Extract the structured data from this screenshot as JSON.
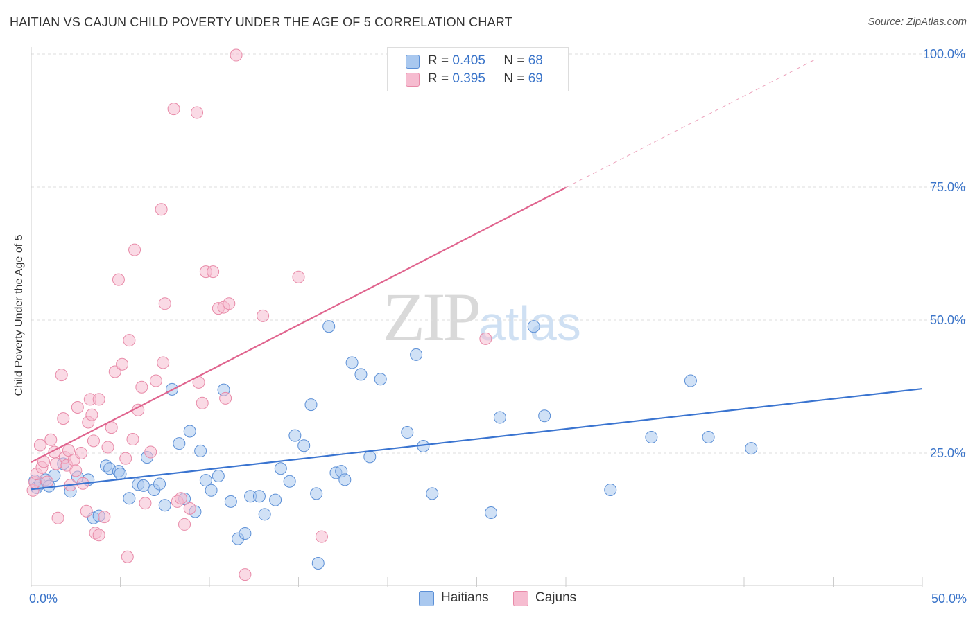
{
  "header": {
    "title": "HAITIAN VS CAJUN CHILD POVERTY UNDER THE AGE OF 5 CORRELATION CHART",
    "source": "Source: ZipAtlas.com"
  },
  "watermark": {
    "zip": "ZIP",
    "atlas": "atlas"
  },
  "legend": {
    "haitians": {
      "r_label": "R =",
      "r_value": "0.405",
      "n_label": "N =",
      "n_value": "68"
    },
    "cajuns": {
      "r_label": "R =",
      "r_value": "0.395",
      "n_label": "N =",
      "n_value": "69"
    }
  },
  "bottom_legend": {
    "haitians": "Haitians",
    "cajuns": "Cajuns"
  },
  "colors": {
    "haitian_fill": "#a9c8ef",
    "haitian_stroke": "#5b8fd6",
    "haitian_line": "#3a74d0",
    "cajun_fill": "#f6bcd0",
    "cajun_stroke": "#e88aa8",
    "cajun_line": "#e0648e",
    "grid": "#dddddd",
    "axis_text": "#3a74c9"
  },
  "chart_data": {
    "type": "scatter",
    "title": "HAITIAN VS CAJUN CHILD POVERTY UNDER THE AGE OF 5 CORRELATION CHART",
    "xlabel": "",
    "ylabel": "Child Poverty Under the Age of 5",
    "xlim": [
      0,
      50
    ],
    "ylim": [
      0,
      102
    ],
    "x_tick_labels": [
      "0.0%",
      "50.0%"
    ],
    "y_ticks": [
      25,
      50,
      75,
      100
    ],
    "y_tick_labels": [
      "25.0%",
      "50.0%",
      "75.0%",
      "100.0%"
    ],
    "grid": true,
    "legend_position": "top-center",
    "series": [
      {
        "name": "Haitians",
        "r": 0.405,
        "n": 68,
        "trend": {
          "x": [
            0,
            50
          ],
          "y": [
            18.2,
            37.1
          ],
          "dashed_from": null
        },
        "points": [
          [
            0.2,
            19.8
          ],
          [
            0.3,
            18.5
          ],
          [
            0.5,
            19.2
          ],
          [
            0.8,
            20.0
          ],
          [
            1.0,
            18.8
          ],
          [
            1.3,
            20.8
          ],
          [
            1.8,
            23.0
          ],
          [
            2.2,
            17.8
          ],
          [
            2.6,
            20.5
          ],
          [
            3.2,
            20.0
          ],
          [
            3.5,
            12.8
          ],
          [
            3.8,
            13.2
          ],
          [
            4.2,
            22.6
          ],
          [
            4.4,
            22.1
          ],
          [
            4.9,
            21.6
          ],
          [
            5.0,
            21.1
          ],
          [
            5.5,
            16.5
          ],
          [
            6.0,
            19.1
          ],
          [
            6.3,
            18.9
          ],
          [
            6.5,
            24.2
          ],
          [
            6.9,
            18.1
          ],
          [
            7.2,
            19.2
          ],
          [
            7.5,
            15.2
          ],
          [
            7.9,
            37.0
          ],
          [
            8.3,
            26.8
          ],
          [
            8.6,
            16.4
          ],
          [
            8.9,
            29.1
          ],
          [
            9.2,
            14.0
          ],
          [
            9.5,
            25.4
          ],
          [
            9.8,
            19.9
          ],
          [
            10.1,
            18.0
          ],
          [
            10.5,
            20.7
          ],
          [
            10.8,
            36.9
          ],
          [
            11.2,
            15.9
          ],
          [
            11.6,
            8.9
          ],
          [
            12.0,
            9.9
          ],
          [
            12.3,
            16.9
          ],
          [
            12.8,
            16.9
          ],
          [
            13.1,
            13.5
          ],
          [
            13.7,
            16.2
          ],
          [
            14.0,
            22.1
          ],
          [
            14.5,
            19.7
          ],
          [
            14.8,
            28.3
          ],
          [
            15.3,
            26.4
          ],
          [
            15.7,
            34.1
          ],
          [
            16.0,
            17.4
          ],
          [
            16.1,
            4.3
          ],
          [
            16.7,
            48.8
          ],
          [
            17.1,
            21.3
          ],
          [
            17.4,
            21.6
          ],
          [
            17.6,
            20.0
          ],
          [
            18.0,
            42.0
          ],
          [
            18.5,
            39.8
          ],
          [
            19.0,
            24.3
          ],
          [
            19.6,
            38.9
          ],
          [
            21.1,
            28.9
          ],
          [
            21.6,
            43.5
          ],
          [
            22.0,
            26.3
          ],
          [
            22.5,
            17.4
          ],
          [
            25.8,
            13.8
          ],
          [
            26.3,
            31.7
          ],
          [
            28.2,
            48.8
          ],
          [
            28.8,
            32.0
          ],
          [
            32.5,
            18.1
          ],
          [
            34.8,
            28.0
          ],
          [
            37.0,
            38.6
          ],
          [
            38.0,
            28.0
          ],
          [
            40.4,
            25.9
          ]
        ]
      },
      {
        "name": "Cajuns",
        "r": 0.395,
        "n": 69,
        "trend": {
          "x": [
            0,
            30,
            44
          ],
          "y": [
            23.3,
            74.9,
            99.0
          ],
          "dashed_from": 30
        },
        "points": [
          [
            0.1,
            18.0
          ],
          [
            0.2,
            19.5
          ],
          [
            0.3,
            21.1
          ],
          [
            0.5,
            26.5
          ],
          [
            0.6,
            22.3
          ],
          [
            0.7,
            23.4
          ],
          [
            0.9,
            19.6
          ],
          [
            1.1,
            27.5
          ],
          [
            1.3,
            25.2
          ],
          [
            1.4,
            23.0
          ],
          [
            1.5,
            12.8
          ],
          [
            1.7,
            39.7
          ],
          [
            1.8,
            31.5
          ],
          [
            1.9,
            24.2
          ],
          [
            2.0,
            22.7
          ],
          [
            2.1,
            25.5
          ],
          [
            2.2,
            19.0
          ],
          [
            2.4,
            23.7
          ],
          [
            2.5,
            21.7
          ],
          [
            2.6,
            33.6
          ],
          [
            2.8,
            25.0
          ],
          [
            2.9,
            19.3
          ],
          [
            3.1,
            14.1
          ],
          [
            3.2,
            30.8
          ],
          [
            3.3,
            35.1
          ],
          [
            3.4,
            32.2
          ],
          [
            3.5,
            27.3
          ],
          [
            3.6,
            10.0
          ],
          [
            3.8,
            9.6
          ],
          [
            3.8,
            35.1
          ],
          [
            4.1,
            13.0
          ],
          [
            4.3,
            26.1
          ],
          [
            4.5,
            29.8
          ],
          [
            4.7,
            40.3
          ],
          [
            4.9,
            57.6
          ],
          [
            5.1,
            41.7
          ],
          [
            5.3,
            24.0
          ],
          [
            5.4,
            5.5
          ],
          [
            5.5,
            46.2
          ],
          [
            5.7,
            27.6
          ],
          [
            5.8,
            63.2
          ],
          [
            6.0,
            33.1
          ],
          [
            6.2,
            37.4
          ],
          [
            6.4,
            15.6
          ],
          [
            6.7,
            25.2
          ],
          [
            7.0,
            38.6
          ],
          [
            7.3,
            70.8
          ],
          [
            7.4,
            42.0
          ],
          [
            7.5,
            53.1
          ],
          [
            8.0,
            89.7
          ],
          [
            8.2,
            15.9
          ],
          [
            8.4,
            16.5
          ],
          [
            8.6,
            11.6
          ],
          [
            8.9,
            14.6
          ],
          [
            9.3,
            89.0
          ],
          [
            9.4,
            38.3
          ],
          [
            9.6,
            34.4
          ],
          [
            9.8,
            59.1
          ],
          [
            10.2,
            59.1
          ],
          [
            10.5,
            52.2
          ],
          [
            10.8,
            52.4
          ],
          [
            10.9,
            35.3
          ],
          [
            11.1,
            53.1
          ],
          [
            11.5,
            99.8
          ],
          [
            12.0,
            2.2
          ],
          [
            13.0,
            50.8
          ],
          [
            15.0,
            58.1
          ],
          [
            16.3,
            9.3
          ],
          [
            25.5,
            46.5
          ]
        ]
      }
    ]
  }
}
